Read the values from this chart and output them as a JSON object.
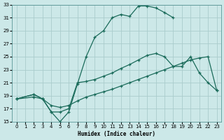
{
  "xlabel": "Humidex (Indice chaleur)",
  "bg_color": "#cce8e8",
  "grid_color": "#aacccc",
  "line_color": "#1a6b5a",
  "xlim": [
    -0.5,
    23.5
  ],
  "ylim": [
    15,
    33
  ],
  "xticks": [
    0,
    1,
    2,
    3,
    4,
    5,
    6,
    7,
    8,
    9,
    10,
    11,
    12,
    13,
    14,
    15,
    16,
    17,
    18,
    19,
    20,
    21,
    22,
    23
  ],
  "yticks": [
    15,
    17,
    19,
    21,
    23,
    25,
    27,
    29,
    31,
    33
  ],
  "line1_x": [
    0,
    2,
    3,
    4,
    5,
    6,
    7,
    8,
    9,
    10,
    11,
    12,
    13,
    14,
    15,
    16,
    17,
    18
  ],
  "line1_y": [
    18.5,
    19.2,
    18.5,
    16.5,
    15.0,
    16.5,
    20.8,
    25.0,
    28.0,
    29.0,
    31.0,
    31.5,
    31.2,
    32.8,
    32.8,
    32.5,
    31.8,
    31.0
  ],
  "line2_x": [
    0,
    2,
    3,
    4,
    5,
    6,
    7,
    8,
    9,
    10,
    11,
    12,
    13,
    14,
    15,
    16,
    17,
    18,
    19,
    20,
    21,
    22,
    23
  ],
  "line2_y": [
    18.5,
    19.2,
    18.5,
    16.5,
    16.5,
    17.0,
    21.0,
    21.2,
    21.5,
    22.0,
    22.5,
    23.2,
    23.8,
    24.5,
    25.2,
    25.5,
    25.0,
    23.5,
    23.5,
    25.0,
    22.5,
    21.0,
    19.8
  ],
  "line3_x": [
    0,
    2,
    3,
    4,
    5,
    6,
    7,
    8,
    9,
    10,
    11,
    12,
    13,
    14,
    15,
    16,
    17,
    18,
    19,
    20,
    21,
    22,
    23
  ],
  "line3_y": [
    18.5,
    18.8,
    18.5,
    17.5,
    17.2,
    17.5,
    18.2,
    18.8,
    19.2,
    19.6,
    20.0,
    20.5,
    21.0,
    21.5,
    22.0,
    22.5,
    23.0,
    23.5,
    24.0,
    24.5,
    24.8,
    25.0,
    19.8
  ],
  "marker": "+"
}
